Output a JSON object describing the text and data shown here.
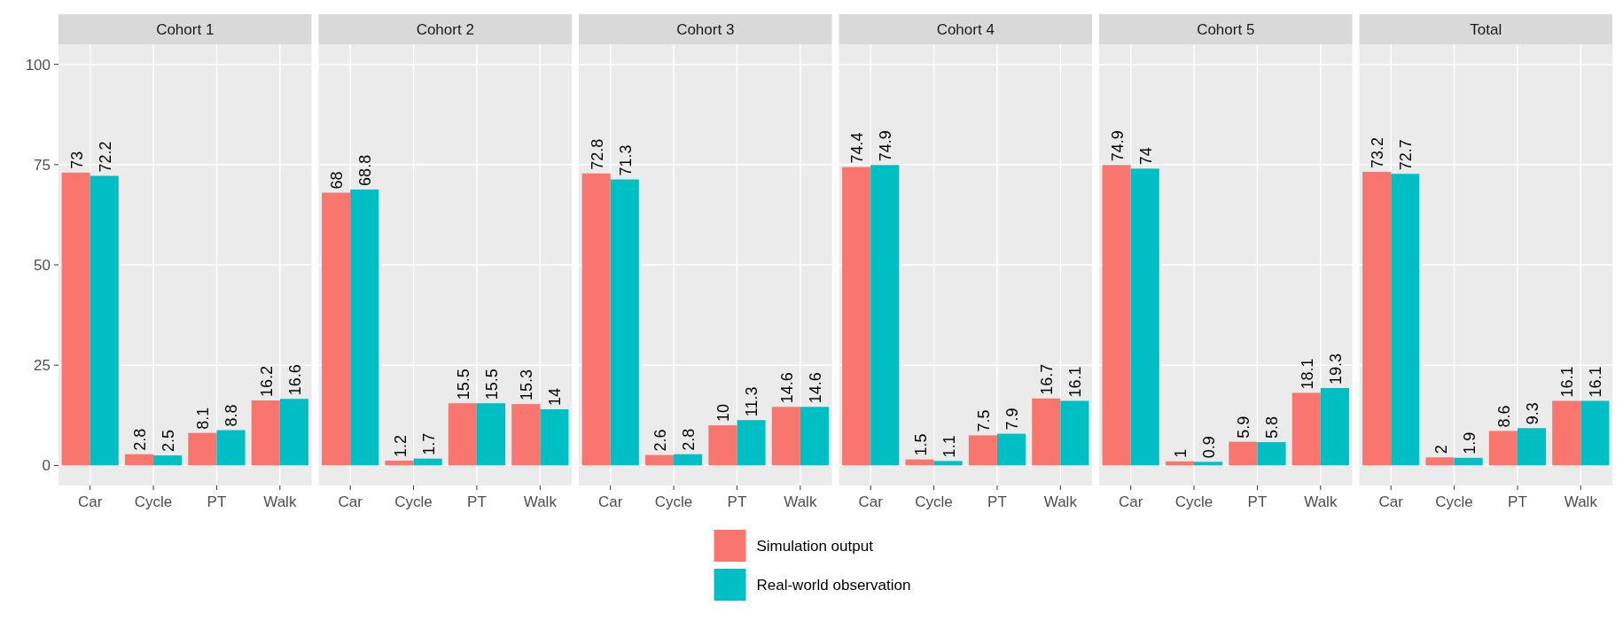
{
  "chart_data": [
    {
      "type": "bar",
      "title": "Cohort 1",
      "categories": [
        "Car",
        "Cycle",
        "PT",
        "Walk"
      ],
      "series": [
        {
          "name": "Simulation output",
          "color": "#f8766d",
          "values": [
            73,
            2.8,
            8.1,
            16.2
          ]
        },
        {
          "name": "Real-world observation",
          "color": "#00bfc4",
          "values": [
            72.2,
            2.5,
            8.8,
            16.6
          ]
        }
      ],
      "ylim": [
        -5,
        105
      ],
      "yticks": [
        0,
        25,
        50,
        75,
        100
      ],
      "grid": true,
      "data_labels": true,
      "legend": "bottom"
    },
    {
      "type": "bar",
      "title": "Cohort 2",
      "categories": [
        "Car",
        "Cycle",
        "PT",
        "Walk"
      ],
      "series": [
        {
          "color": "#f8766d",
          "values": [
            68,
            1.2,
            15.5,
            15.3
          ]
        },
        {
          "color": "#00bfc4",
          "values": [
            68.8,
            1.7,
            15.5,
            14
          ]
        }
      ],
      "ylim": [
        -5,
        105
      ],
      "yticks": [
        0,
        25,
        50,
        75,
        100
      ],
      "grid": true,
      "data_labels": true,
      "tick_labels": "x"
    },
    {
      "type": "bar",
      "title": "Cohort 3",
      "categories": [
        "Car",
        "Cycle",
        "PT",
        "Walk"
      ],
      "series": [
        {
          "color": "#f8766d",
          "values": [
            72.8,
            2.6,
            10,
            14.6
          ]
        },
        {
          "color": "#00bfc4",
          "values": [
            71.3,
            2.8,
            11.3,
            14.6
          ]
        }
      ],
      "ylim": [
        -5,
        105
      ],
      "yticks": [
        0,
        25,
        50,
        75,
        100
      ],
      "grid": true,
      "data_labels": true,
      "tick_labels": "x"
    },
    {
      "type": "bar",
      "title": "Cohort 4",
      "categories": [
        "Car",
        "Cycle",
        "PT",
        "Walk"
      ],
      "series": [
        {
          "color": "#f8766d",
          "values": [
            74.4,
            1.5,
            7.5,
            16.7
          ]
        },
        {
          "color": "#00bfc4",
          "values": [
            74.9,
            1.1,
            7.9,
            16.1
          ]
        }
      ],
      "ylim": [
        -5,
        105
      ],
      "yticks": [
        0,
        25,
        50,
        75,
        100
      ],
      "grid": true,
      "data_labels": true,
      "tick_labels": "x"
    },
    {
      "type": "bar",
      "title": "Cohort 5",
      "categories": [
        "Car",
        "Cycle",
        "PT",
        "Walk"
      ],
      "series": [
        {
          "color": "#f8766d",
          "values": [
            74.9,
            1,
            5.9,
            18.1
          ]
        },
        {
          "color": "#00bfc4",
          "values": [
            74,
            0.9,
            5.8,
            19.3
          ]
        }
      ],
      "ylim": [
        -5,
        105
      ],
      "yticks": [
        0,
        25,
        50,
        75,
        100
      ],
      "grid": true,
      "data_labels": true,
      "tick_labels": "x"
    },
    {
      "type": "bar",
      "title": "Total",
      "categories": [
        "Car",
        "Cycle",
        "PT",
        "Walk"
      ],
      "series": [
        {
          "color": "#f8766d",
          "values": [
            73.2,
            2,
            8.6,
            16.1
          ]
        },
        {
          "color": "#00bfc4",
          "values": [
            72.7,
            1.9,
            9.3,
            16.1
          ]
        }
      ],
      "ylim": [
        -5,
        105
      ],
      "yticks": [
        0,
        25,
        50,
        75,
        100
      ],
      "grid": true,
      "data_labels": true,
      "tick_labels": "x"
    }
  ]
}
